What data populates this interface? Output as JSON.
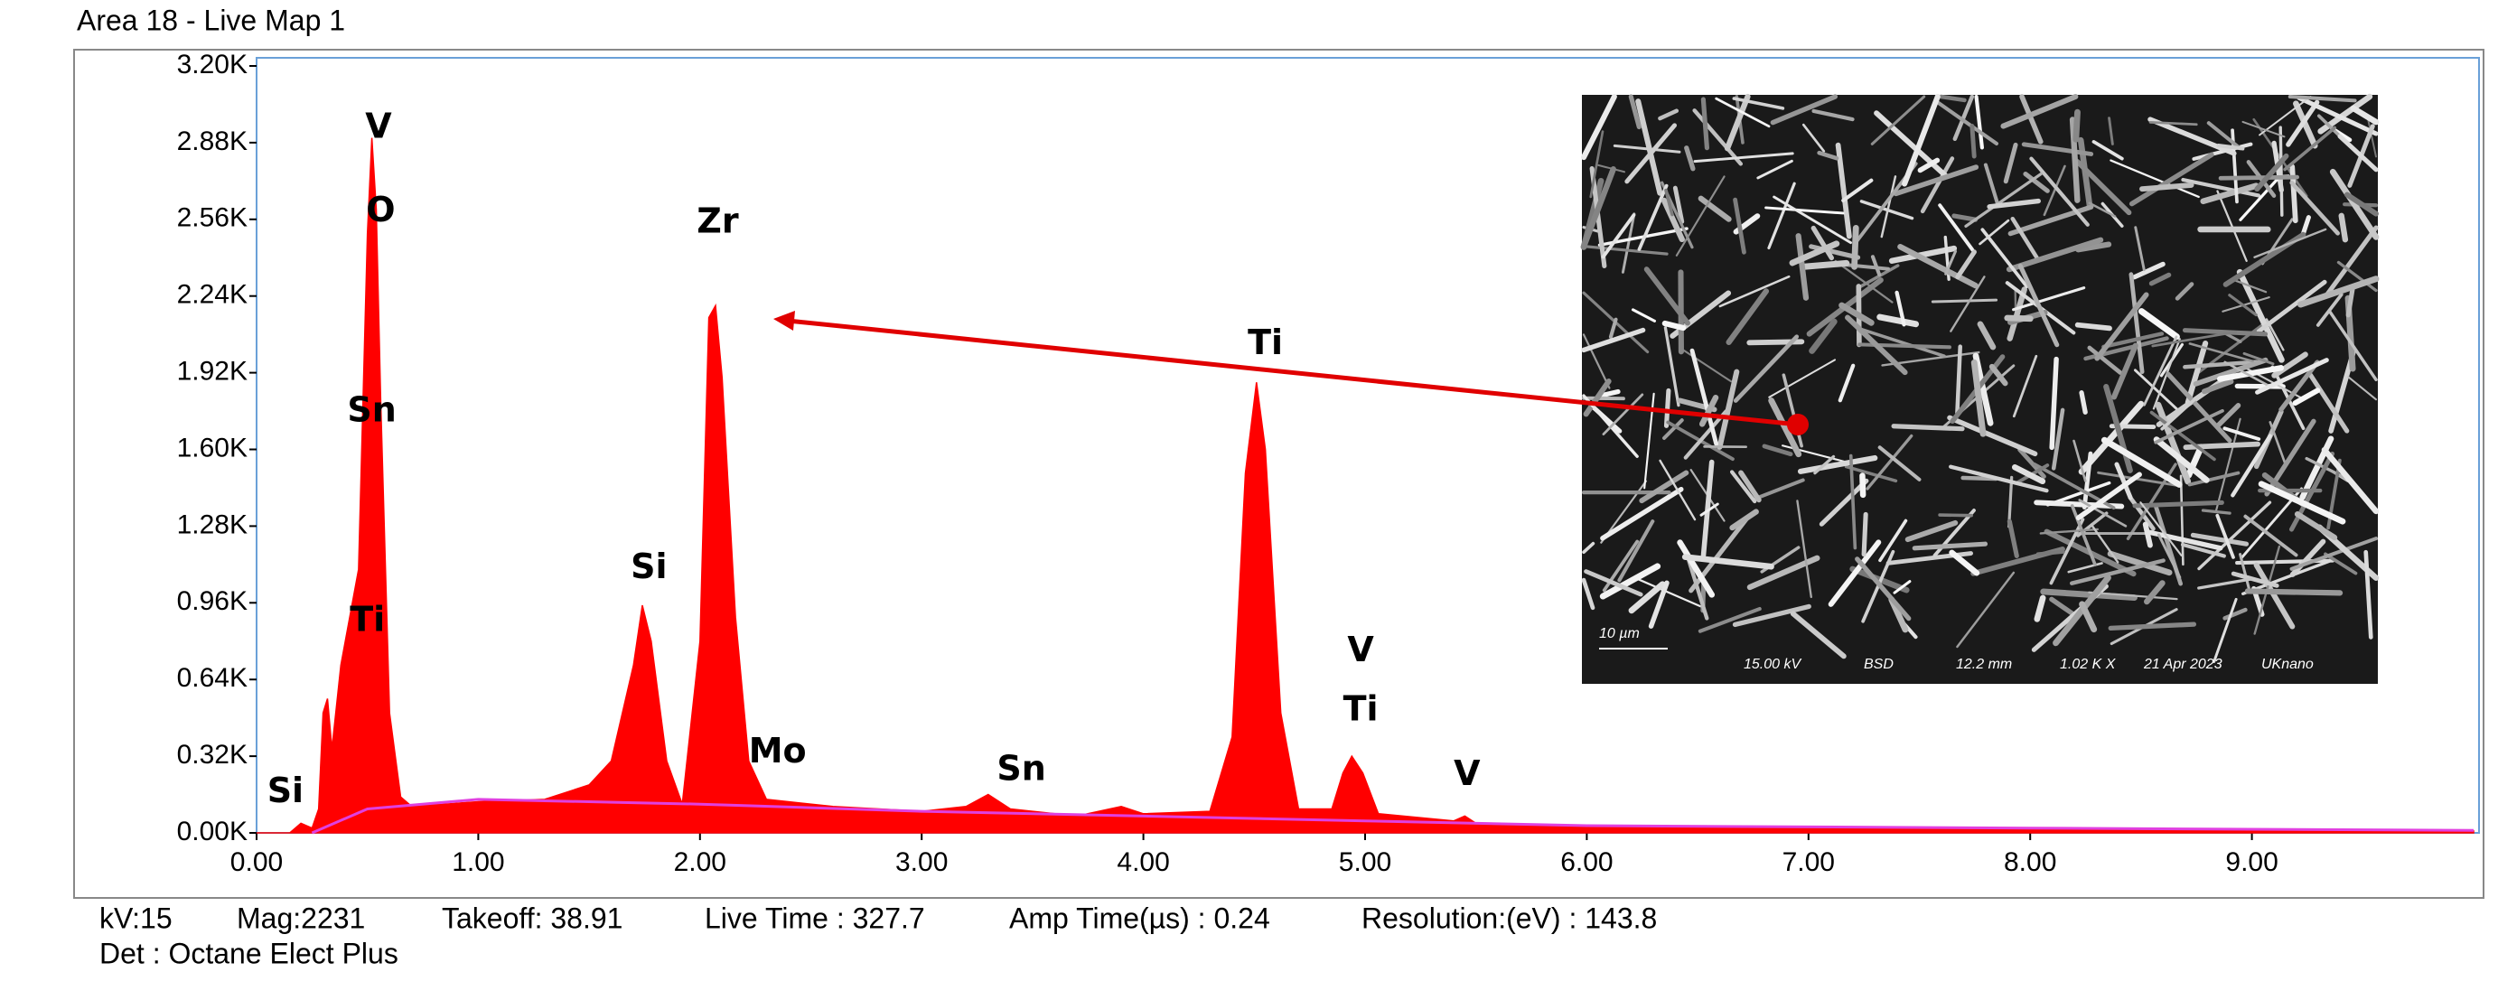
{
  "title": "Area 18 - Live Map 1",
  "chart_data": {
    "type": "area",
    "xlim": [
      0,
      10
    ],
    "ylim": [
      0,
      3200
    ],
    "xticks": [
      {
        "value": 0,
        "label": "0.00"
      },
      {
        "value": 1,
        "label": "1.00"
      },
      {
        "value": 2,
        "label": "2.00"
      },
      {
        "value": 3,
        "label": "3.00"
      },
      {
        "value": 4,
        "label": "4.00"
      },
      {
        "value": 5,
        "label": "5.00"
      },
      {
        "value": 6,
        "label": "6.00"
      },
      {
        "value": 7,
        "label": "7.00"
      },
      {
        "value": 8,
        "label": "8.00"
      },
      {
        "value": 9,
        "label": "9.00"
      }
    ],
    "yticks": [
      {
        "value": 0,
        "label": "0.00K"
      },
      {
        "value": 320,
        "label": "0.32K"
      },
      {
        "value": 640,
        "label": "0.64K"
      },
      {
        "value": 960,
        "label": "0.96K"
      },
      {
        "value": 1280,
        "label": "1.28K"
      },
      {
        "value": 1600,
        "label": "1.60K"
      },
      {
        "value": 1920,
        "label": "1.92K"
      },
      {
        "value": 2240,
        "label": "2.24K"
      },
      {
        "value": 2560,
        "label": "2.56K"
      },
      {
        "value": 2880,
        "label": "2.88K"
      },
      {
        "value": 3200,
        "label": "3.20K"
      }
    ],
    "series": [
      {
        "color": "#ff0000",
        "fill": true,
        "x": [
          0,
          0.15,
          0.2,
          0.25,
          0.28,
          0.3,
          0.32,
          0.34,
          0.38,
          0.42,
          0.46,
          0.5,
          0.52,
          0.54,
          0.56,
          0.6,
          0.65,
          0.7,
          1.0,
          1.3,
          1.5,
          1.6,
          1.7,
          1.74,
          1.78,
          1.85,
          1.92,
          2.0,
          2.04,
          2.07,
          2.1,
          2.16,
          2.22,
          2.3,
          2.6,
          3.0,
          3.2,
          3.3,
          3.4,
          3.7,
          3.9,
          4.0,
          4.3,
          4.4,
          4.46,
          4.51,
          4.55,
          4.62,
          4.7,
          4.85,
          4.9,
          4.94,
          4.99,
          5.06,
          5.4,
          5.45,
          5.5,
          6.0,
          7.0,
          8.0,
          9.0,
          10.0
        ],
        "values": [
          0,
          0,
          40,
          20,
          100,
          500,
          560,
          350,
          700,
          900,
          1100,
          2500,
          2900,
          2600,
          1800,
          500,
          150,
          110,
          130,
          140,
          200,
          300,
          700,
          950,
          800,
          300,
          120,
          800,
          2150,
          2200,
          1900,
          900,
          300,
          140,
          110,
          90,
          110,
          160,
          100,
          70,
          110,
          80,
          90,
          400,
          1500,
          1880,
          1600,
          500,
          100,
          100,
          250,
          320,
          250,
          80,
          50,
          70,
          40,
          25,
          20,
          15,
          10,
          8
        ]
      },
      {
        "color": "#e040e0",
        "fill": false,
        "x": [
          0.25,
          0.5,
          1.0,
          2.0,
          3.0,
          4.0,
          5.0,
          6.0,
          8.0,
          10.0
        ],
        "values": [
          0,
          100,
          140,
          120,
          90,
          70,
          50,
          30,
          20,
          10
        ]
      }
    ],
    "annotations": [
      {
        "text": "V",
        "x": 0.55,
        "y": 2940
      },
      {
        "text": "O",
        "x": 0.56,
        "y": 2592
      },
      {
        "text": "Sn",
        "x": 0.52,
        "y": 1757
      },
      {
        "text": "Ti",
        "x": 0.5,
        "y": 882
      },
      {
        "text": "Si",
        "x": 0.13,
        "y": 167
      },
      {
        "text": "Si",
        "x": 1.77,
        "y": 1102
      },
      {
        "text": "Zr",
        "x": 2.08,
        "y": 2545
      },
      {
        "text": "Mo",
        "x": 2.35,
        "y": 334
      },
      {
        "text": "Sn",
        "x": 3.45,
        "y": 260
      },
      {
        "text": "Ti",
        "x": 4.55,
        "y": 2038
      },
      {
        "text": "V",
        "x": 4.98,
        "y": 755
      },
      {
        "text": "Ti",
        "x": 4.98,
        "y": 508
      },
      {
        "text": "V",
        "x": 5.46,
        "y": 240
      }
    ]
  },
  "inset": {
    "labels": [
      "10 µm",
      "15.00 kV",
      "BSD",
      "12.2 mm",
      "1.02 K X",
      "21 Apr 2023",
      "UKnano"
    ]
  },
  "footer": {
    "line1": [
      "kV:15",
      "Mag:2231",
      "Takeoff: 38.91",
      "Live Time : 327.7",
      "Amp Time(µs) : 0.24",
      "Resolution:(eV) : 143.8"
    ],
    "line2": "Det : Octane Elect Plus"
  }
}
